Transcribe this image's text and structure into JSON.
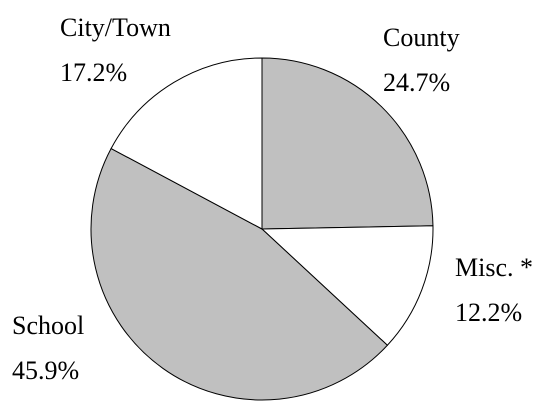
{
  "chart_data": {
    "type": "pie",
    "categories": [
      "County",
      "Misc. *",
      "School",
      "City/Town"
    ],
    "values": [
      24.7,
      12.2,
      45.9,
      17.2
    ],
    "value_labels": [
      "24.7%",
      "12.2%",
      "45.9%",
      "17.2%"
    ],
    "colors": [
      "#c0c0c0",
      "#ffffff",
      "#c0c0c0",
      "#ffffff"
    ]
  }
}
